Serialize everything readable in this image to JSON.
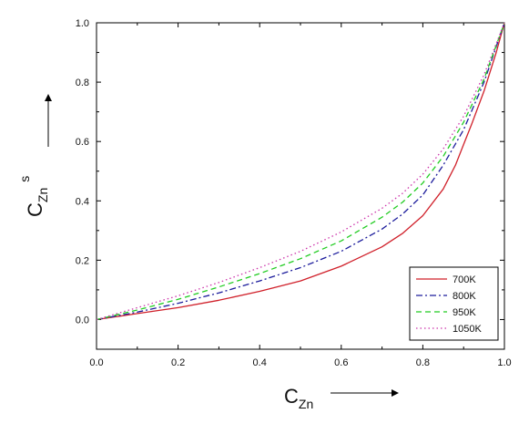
{
  "chart_data": {
    "type": "line",
    "xlabel": {
      "main": "C",
      "sub": "Zn"
    },
    "ylabel": {
      "main": "C",
      "sub": "Zn",
      "sup": "s"
    },
    "xlim": [
      0.0,
      1.0
    ],
    "ylim": [
      -0.1,
      1.0
    ],
    "xticks": [
      "0.0",
      "0.2",
      "0.4",
      "0.6",
      "0.8",
      "1.0"
    ],
    "yticks": [
      "0.0",
      "0.2",
      "0.4",
      "0.6",
      "0.8",
      "1.0"
    ],
    "grid": false,
    "legend_position": "bottom-right",
    "series": [
      {
        "name": "700K",
        "color": "#d0202a",
        "dash": "solid",
        "x": [
          0,
          0.1,
          0.2,
          0.3,
          0.4,
          0.5,
          0.6,
          0.7,
          0.75,
          0.8,
          0.85,
          0.88,
          0.9,
          0.92,
          0.95,
          0.98,
          1.0
        ],
        "y": [
          0,
          0.02,
          0.04,
          0.065,
          0.095,
          0.13,
          0.18,
          0.245,
          0.29,
          0.35,
          0.44,
          0.52,
          0.59,
          0.66,
          0.77,
          0.9,
          1.0
        ]
      },
      {
        "name": "800K",
        "color": "#1c1c9c",
        "dash": "dashdot",
        "x": [
          0,
          0.1,
          0.2,
          0.3,
          0.4,
          0.5,
          0.6,
          0.7,
          0.75,
          0.8,
          0.85,
          0.9,
          0.95,
          1.0
        ],
        "y": [
          0,
          0.025,
          0.055,
          0.09,
          0.13,
          0.175,
          0.23,
          0.305,
          0.355,
          0.42,
          0.52,
          0.64,
          0.8,
          1.0
        ]
      },
      {
        "name": "950K",
        "color": "#22cc22",
        "dash": "dashed",
        "x": [
          0,
          0.1,
          0.2,
          0.3,
          0.4,
          0.5,
          0.6,
          0.7,
          0.75,
          0.8,
          0.85,
          0.9,
          0.95,
          1.0
        ],
        "y": [
          0,
          0.032,
          0.068,
          0.11,
          0.155,
          0.205,
          0.265,
          0.345,
          0.395,
          0.46,
          0.55,
          0.665,
          0.81,
          1.0
        ]
      },
      {
        "name": "1050K",
        "color": "#cc33aa",
        "dash": "dotted",
        "x": [
          0,
          0.1,
          0.2,
          0.3,
          0.4,
          0.5,
          0.6,
          0.7,
          0.75,
          0.8,
          0.85,
          0.9,
          0.95,
          1.0
        ],
        "y": [
          0,
          0.04,
          0.08,
          0.125,
          0.175,
          0.23,
          0.295,
          0.375,
          0.425,
          0.49,
          0.575,
          0.685,
          0.825,
          1.0
        ]
      }
    ]
  }
}
